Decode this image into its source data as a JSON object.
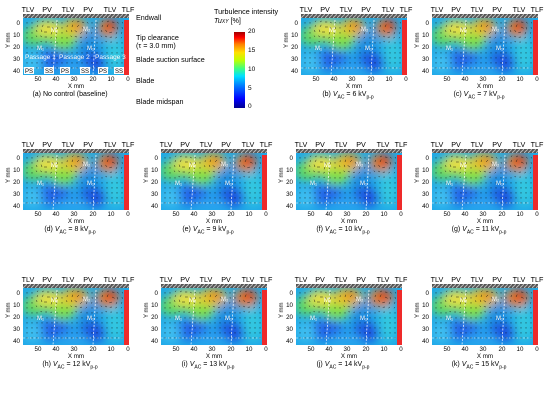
{
  "figure": {
    "top_labels": [
      "TLV",
      "PV",
      "TLV",
      "PV",
      "TLV",
      "TLF"
    ],
    "y_axis_label": "Y mm",
    "x_axis_label": "X mm",
    "y_ticks": [
      "0",
      "10",
      "20",
      "30",
      "40"
    ],
    "x_ticks": [
      "50",
      "40",
      "30",
      "20",
      "10",
      "0"
    ],
    "passage_labels": [
      "Passage 1",
      "Passage 2",
      "Passage 3"
    ],
    "surface_labels": [
      "PS",
      "SS",
      "PS",
      "SS",
      "PS",
      "SS"
    ],
    "marker_labels": [
      "M₂",
      "M₁",
      "M₂",
      "M₁"
    ],
    "annotations": {
      "endwall": "Endwall",
      "tip_clearance": "Tip clearance",
      "tip_clearance_value": "(τ = 3.0 mm)",
      "blade_suction_surface": "Blade suction surface",
      "blade": "Blade",
      "blade_midspan": "Blade midspan"
    },
    "colorbar": {
      "title_line1": "Turbulence intensity",
      "title_line2": "Tu",
      "title_sub": "XY",
      "title_unit": "[%]",
      "ticks": [
        "20",
        "15",
        "10",
        "5",
        "0"
      ],
      "min": 0,
      "max": 20
    }
  },
  "panels": [
    {
      "id": "a",
      "prefix": "(a)",
      "text": "No control (baseline)",
      "voltage": null
    },
    {
      "id": "b",
      "prefix": "(b)",
      "text": "= 6 kV",
      "voltage": 6
    },
    {
      "id": "c",
      "prefix": "(c)",
      "text": "= 7 kV",
      "voltage": 7
    },
    {
      "id": "d",
      "prefix": "(d)",
      "text": "= 8 kV",
      "voltage": 8
    },
    {
      "id": "e",
      "prefix": "(e)",
      "text": "= 9 kV",
      "voltage": 9
    },
    {
      "id": "f",
      "prefix": "(f)",
      "text": "= 10 kV",
      "voltage": 10
    },
    {
      "id": "g",
      "prefix": "(g)",
      "text": "= 11 kV",
      "voltage": 11
    },
    {
      "id": "h",
      "prefix": "(h)",
      "text": "= 12 kV",
      "voltage": 12
    },
    {
      "id": "i",
      "prefix": "(i)",
      "text": "= 13 kV",
      "voltage": 13
    },
    {
      "id": "j",
      "prefix": "(j)",
      "text": "= 14 kV",
      "voltage": 14
    },
    {
      "id": "k",
      "prefix": "(k)",
      "text": "= 15 kV",
      "voltage": 15
    }
  ],
  "caption_parts": {
    "vac_symbol": "V",
    "vac_sub": "AC",
    "pp_sub": "p-p"
  }
}
